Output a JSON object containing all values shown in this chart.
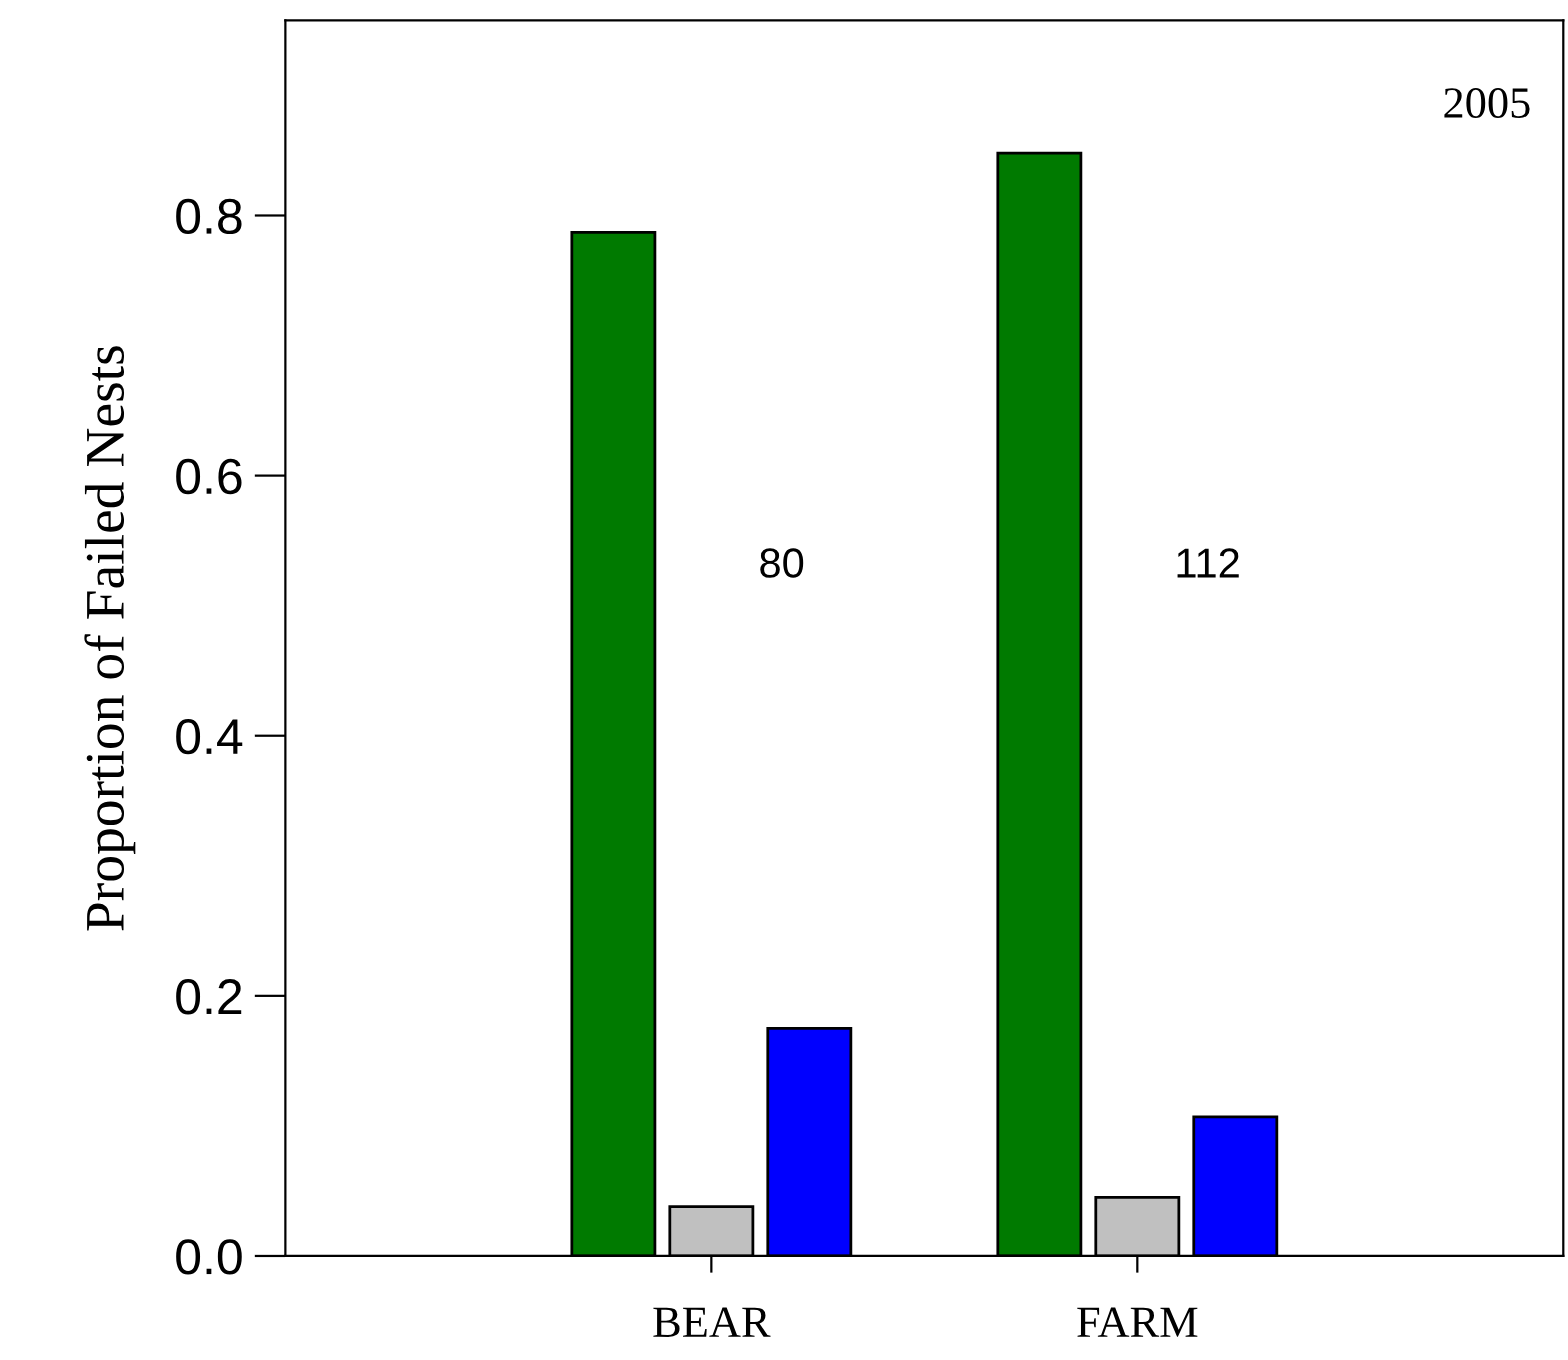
{
  "chart_data": {
    "type": "bar",
    "ylabel": "Proportion of Failed Nests",
    "categories": [
      "BEAR",
      "FARM"
    ],
    "series": [
      {
        "color": "#007a00",
        "values": [
          0.787,
          0.848
        ]
      },
      {
        "color": "#c0c0c0",
        "values": [
          0.038,
          0.045
        ]
      },
      {
        "color": "#0000ff",
        "values": [
          0.175,
          0.107
        ]
      }
    ],
    "ylim": [
      0,
      0.95
    ],
    "yticks": [
      {
        "value": 0,
        "label": "0.0"
      },
      0.2,
      0.4,
      0.6,
      0.8
    ],
    "annotations": [
      "80",
      "112",
      "2005"
    ],
    "grid": false
  }
}
